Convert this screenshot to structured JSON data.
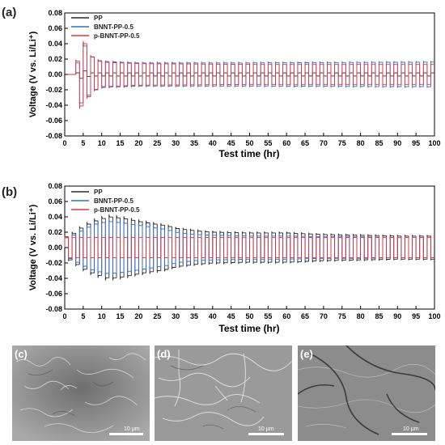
{
  "panels": {
    "a": {
      "label": "(a)"
    },
    "b": {
      "label": "(b)"
    },
    "c": {
      "label": "(c)",
      "scale_bar": "10 μm"
    },
    "d": {
      "label": "(d)",
      "scale_bar": "10 μm"
    },
    "e": {
      "label": "(e)",
      "scale_bar": "10 μm"
    }
  },
  "colors": {
    "PP": "#2b2b2b",
    "BNNT-PP-0.5": "#2e6fd6",
    "p-BNNT-PP-0.5": "#e0393e"
  },
  "chart_data": [
    {
      "panel": "a",
      "type": "line",
      "xlabel": "Test time (hr)",
      "ylabel": "Voltage (V vs. Li/Li⁺)",
      "xlim": [
        0,
        100
      ],
      "ylim": [
        -0.08,
        0.08
      ],
      "xticks": [
        "0",
        "5",
        "10",
        "15",
        "20",
        "25",
        "30",
        "35",
        "40",
        "45",
        "50",
        "55",
        "60",
        "65",
        "70",
        "75",
        "80",
        "85",
        "90",
        "95",
        "100"
      ],
      "yticks": [
        "-0.08",
        "-0.06",
        "-0.04",
        "-0.02",
        "0.00",
        "0.02",
        "0.04",
        "0.06",
        "0.08"
      ],
      "legend": [
        "PP",
        "BNNT-PP-0.5",
        "p-BNNT-PP-0.5"
      ],
      "legend_position": "top-left",
      "series": [
        {
          "name": "PP",
          "cycle_hr": 2,
          "x": [
            0,
            3,
            4,
            5,
            6,
            7,
            8,
            9,
            10,
            20,
            50,
            100
          ],
          "y": [
            0,
            0,
            0.004,
            0.006,
            0.003,
            0.002,
            0.002,
            0.002,
            0.002,
            0.002,
            0.002,
            0.002
          ]
        },
        {
          "name": "BNNT-PP-0.5",
          "cycle_hr": 2,
          "x": [
            0,
            3,
            4,
            5,
            6,
            7,
            8,
            9,
            10,
            20,
            50,
            100
          ],
          "y": [
            0,
            0,
            0.03,
            0.044,
            0.03,
            0.024,
            0.021,
            0.019,
            0.017,
            0.015,
            0.015,
            0.016
          ]
        },
        {
          "name": "p-BNNT-PP-0.5",
          "cycle_hr": 2,
          "x": [
            0,
            3,
            4,
            5,
            6,
            7,
            8,
            9,
            10,
            20,
            50,
            100
          ],
          "y": [
            0,
            0,
            0.035,
            0.047,
            0.033,
            0.025,
            0.021,
            0.018,
            0.016,
            0.014,
            0.013,
            0.013
          ]
        }
      ]
    },
    {
      "panel": "b",
      "type": "line",
      "xlabel": "Test time (hr)",
      "ylabel": "Voltage (V vs. Li/Li⁺)",
      "xlim": [
        0,
        100
      ],
      "ylim": [
        -0.08,
        0.08
      ],
      "xticks": [
        "0",
        "5",
        "10",
        "15",
        "20",
        "25",
        "30",
        "35",
        "40",
        "45",
        "50",
        "55",
        "60",
        "65",
        "70",
        "75",
        "80",
        "85",
        "90",
        "95",
        "100"
      ],
      "yticks": [
        "-0.08",
        "-0.06",
        "-0.04",
        "-0.02",
        "0.00",
        "0.02",
        "0.04",
        "0.06",
        "0.08"
      ],
      "legend": [
        "PP",
        "BNNT-PP-0.5",
        "p-BNNT-PP-0.5"
      ],
      "legend_position": "top-left",
      "series": [
        {
          "name": "PP",
          "cycle_hr": 2,
          "x": [
            0,
            2,
            5,
            8,
            12,
            16,
            20,
            24,
            28,
            30,
            35,
            40,
            50,
            60,
            70,
            80,
            90,
            100
          ],
          "y": [
            0.013,
            0.017,
            0.027,
            0.034,
            0.04,
            0.038,
            0.034,
            0.031,
            0.028,
            0.025,
            0.022,
            0.02,
            0.019,
            0.019,
            0.017,
            0.016,
            0.015,
            0.015
          ]
        },
        {
          "name": "BNNT-PP-0.5",
          "cycle_hr": 2,
          "x": [
            0,
            2,
            5,
            8,
            12,
            16,
            20,
            24,
            28,
            30,
            35,
            40,
            50,
            60,
            70,
            80,
            90,
            100
          ],
          "y": [
            0.012,
            0.015,
            0.023,
            0.03,
            0.034,
            0.032,
            0.029,
            0.026,
            0.023,
            0.02,
            0.017,
            0.016,
            0.015,
            0.015,
            0.014,
            0.014,
            0.013,
            0.013
          ]
        },
        {
          "name": "p-BNNT-PP-0.5",
          "cycle_hr": 2,
          "x": [
            0,
            100
          ],
          "y": [
            0.013,
            0.013
          ]
        }
      ]
    }
  ]
}
